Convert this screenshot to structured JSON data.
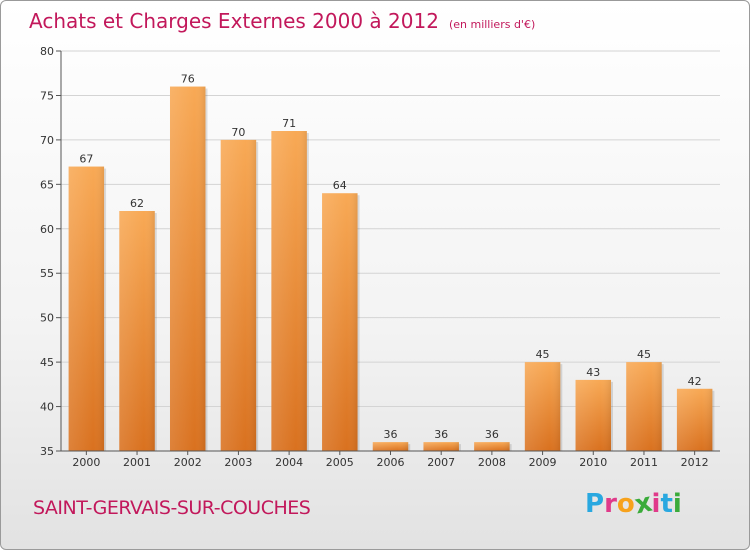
{
  "header": {
    "title": "Achats et Charges Externes 2000 à 2012",
    "subtitle": "(en milliers d'€)"
  },
  "footer": {
    "commune": "SAINT-GERVAIS-SUR-COUCHES",
    "logo_letters": [
      "P",
      "r",
      "o",
      "x",
      "i",
      "t",
      "i"
    ],
    "logo_colors": [
      "#29a8e0",
      "#e03a8a",
      "#f7a21c",
      "#3aab3a",
      "#e03a8a",
      "#29a8e0",
      "#3aab3a"
    ]
  },
  "chart_data": {
    "type": "bar",
    "title": "Achats et Charges Externes 2000 à 2012",
    "subtitle": "(en milliers d'€)",
    "categories": [
      "2000",
      "2001",
      "2002",
      "2003",
      "2004",
      "2005",
      "2006",
      "2007",
      "2008",
      "2009",
      "2010",
      "2011",
      "2012"
    ],
    "values": [
      67,
      62,
      76,
      70,
      71,
      64,
      36,
      36,
      36,
      45,
      43,
      45,
      42
    ],
    "labels": [
      "67",
      "62",
      "76",
      "70",
      "71",
      "64",
      "36",
      "36",
      "36",
      "45",
      "43",
      "45",
      "42"
    ],
    "yticks": [
      "35",
      "40",
      "45",
      "50",
      "55",
      "60",
      "65",
      "70",
      "75",
      "80"
    ],
    "ylim": [
      35,
      80
    ],
    "xlabel": "",
    "ylabel": "",
    "bar_color_light": "#f8a955",
    "bar_color_dark": "#d9711f",
    "grid": true
  }
}
